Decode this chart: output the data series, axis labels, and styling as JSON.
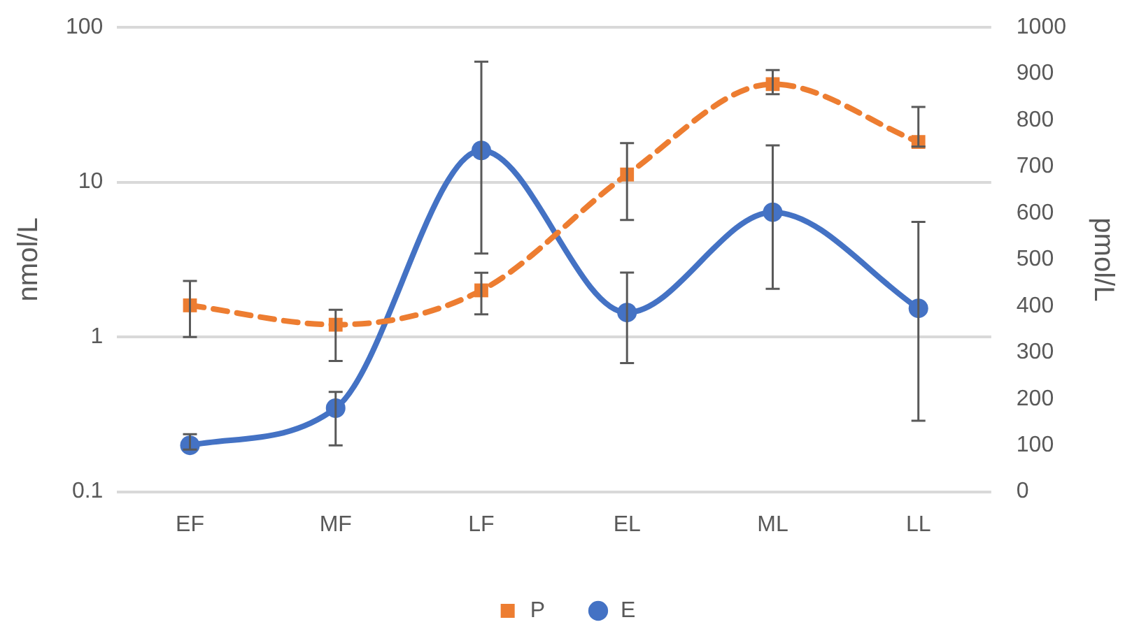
{
  "chart_data": {
    "type": "line",
    "categories": [
      "EF",
      "MF",
      "LF",
      "EL",
      "ML",
      "LL"
    ],
    "ylabel": "nmol/L",
    "y2label": "pmol/L",
    "log": "y",
    "ylim": [
      0.1,
      100
    ],
    "yticks": [
      0.1,
      1,
      10,
      100
    ],
    "y2lim": [
      0,
      1000
    ],
    "y2ticks": [
      0,
      100,
      200,
      300,
      400,
      500,
      600,
      700,
      800,
      900,
      1000
    ],
    "grid": "y",
    "legend": "bottom",
    "series": [
      {
        "name": "P",
        "color": "#ed7d31",
        "axis": "y",
        "marker": "square",
        "line_style": "dashed",
        "values": [
          1.6,
          1.2,
          2.0,
          11.2,
          43,
          18.2
        ],
        "errors": [
          [
            1.0,
            2.3
          ],
          [
            0.7,
            1.5
          ],
          [
            1.4,
            2.6
          ],
          [
            5.7,
            17.9
          ],
          [
            37,
            53
          ],
          [
            17,
            30.6
          ]
        ]
      },
      {
        "name": "E",
        "color": "#4472c4",
        "axis": "y2",
        "marker": "circle",
        "line_style": "solid",
        "values": [
          100,
          180,
          735,
          386,
          602,
          395
        ],
        "errors": [
          [
            91,
            124
          ],
          [
            100,
            215
          ],
          [
            513,
            926
          ],
          [
            277,
            472
          ],
          [
            437,
            746
          ],
          [
            153,
            581
          ]
        ]
      }
    ]
  }
}
